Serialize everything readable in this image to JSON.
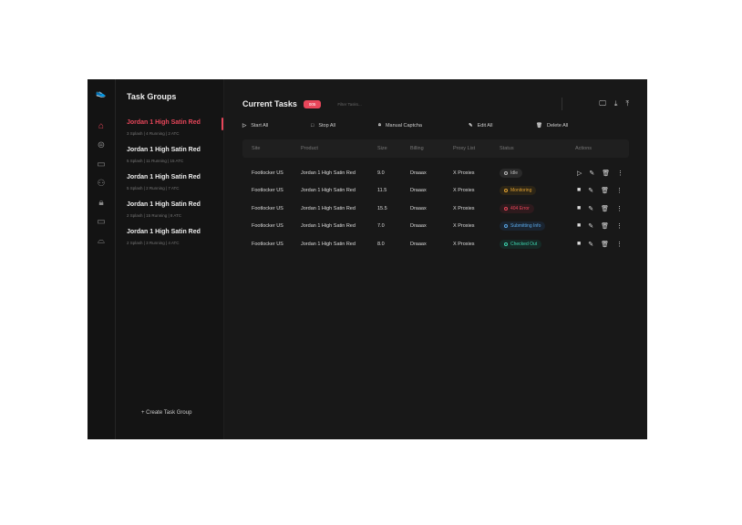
{
  "sidebar": {
    "icons": [
      "home-icon",
      "gamepad-icon",
      "card-icon",
      "users-icon",
      "lock-icon",
      "monitor-icon",
      "bag-icon"
    ]
  },
  "groups": {
    "title": "Task Groups",
    "items": [
      {
        "title": "Jordan 1 High Satin Red",
        "sub": "3 Splash | 4 Running | 2 ATC"
      },
      {
        "title": "Jordan 1 High Satin Red",
        "sub": "5 Splash | 11 Running | 15 ATC"
      },
      {
        "title": "Jordan 1 High Satin Red",
        "sub": "5 Splash | 2 Running | 7 ATC"
      },
      {
        "title": "Jordan 1 High Satin Red",
        "sub": "2 Splash | 15 Running | 8 ATC"
      },
      {
        "title": "Jordan 1 High Satin Red",
        "sub": "2 Splash | 3 Running | 4 ATC"
      }
    ],
    "create": "+ Create Task Group"
  },
  "main": {
    "title": "Current Tasks",
    "badge": "005",
    "filter_placeholder": "Filter Tasks...",
    "toolbar": {
      "start": "Start All",
      "stop": "Stop All",
      "captcha": "Manual Captcha",
      "edit": "Edit All",
      "delete": "Delete All"
    },
    "columns": [
      "Site",
      "Product",
      "Size",
      "Billing",
      "Proxy List",
      "Status",
      "Actions"
    ],
    "rows": [
      {
        "site": "Footlocker US",
        "product": "Jordan 1 High Satin Red",
        "size": "9.0",
        "billing": "Draaax",
        "proxy": "X Proxies",
        "status": "Idle",
        "color": "#bbbbbb",
        "bg": "#2a2a2a",
        "running": false
      },
      {
        "site": "Footlocker US",
        "product": "Jordan 1 High Satin Red",
        "size": "11.5",
        "billing": "Draaax",
        "proxy": "X Proxies",
        "status": "Monitoring",
        "color": "#e0a030",
        "bg": "#2c2516",
        "running": true
      },
      {
        "site": "Footlocker US",
        "product": "Jordan 1 High Satin Red",
        "size": "15.5",
        "billing": "Draaax",
        "proxy": "X Proxies",
        "status": "404 Error",
        "color": "#e8465a",
        "bg": "#2e1a1d",
        "running": true
      },
      {
        "site": "Footlocker US",
        "product": "Jordan 1 High Satin Red",
        "size": "7.0",
        "billing": "Draaax",
        "proxy": "X Proxies",
        "status": "Submitting Info",
        "color": "#5aa8e8",
        "bg": "#1a2430",
        "running": true
      },
      {
        "site": "Footlocker US",
        "product": "Jordan 1 High Satin Red",
        "size": "8.0",
        "billing": "Draaax",
        "proxy": "X Proxies",
        "status": "Checked Out",
        "color": "#3dd6b0",
        "bg": "#162a26",
        "running": true
      }
    ]
  }
}
